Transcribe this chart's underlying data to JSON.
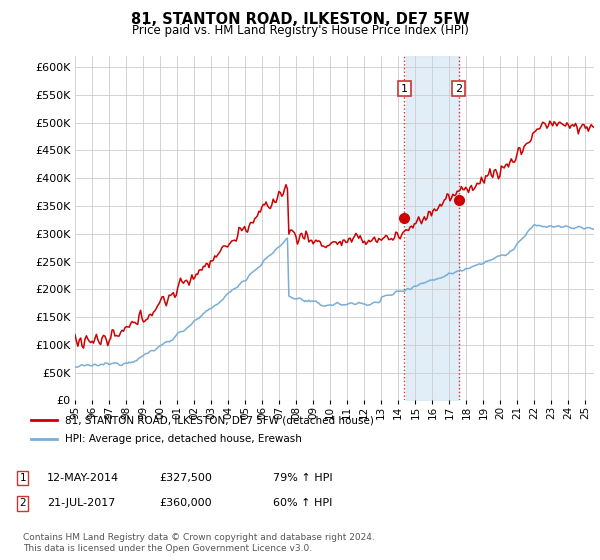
{
  "title": "81, STANTON ROAD, ILKESTON, DE7 5FW",
  "subtitle": "Price paid vs. HM Land Registry's House Price Index (HPI)",
  "legend_line1": "81, STANTON ROAD, ILKESTON, DE7 5FW (detached house)",
  "legend_line2": "HPI: Average price, detached house, Erewash",
  "sale1_date": "12-MAY-2014",
  "sale1_price": "£327,500",
  "sale1_hpi": "79% ↑ HPI",
  "sale1_price_val": 327500,
  "sale1_year": 2014.36,
  "sale2_date": "21-JUL-2017",
  "sale2_price": "£360,000",
  "sale2_hpi": "60% ↑ HPI",
  "sale2_price_val": 360000,
  "sale2_year": 2017.55,
  "footer": "Contains HM Land Registry data © Crown copyright and database right 2024.\nThis data is licensed under the Open Government Licence v3.0.",
  "hpi_color": "#7aaed6",
  "price_color": "#cc0000",
  "shade_color": "#d6e8f5",
  "vline_color": "#cc3333",
  "ylim": [
    0,
    620000
  ],
  "yticks": [
    0,
    50000,
    100000,
    150000,
    200000,
    250000,
    300000,
    350000,
    400000,
    450000,
    500000,
    550000,
    600000
  ],
  "xlim_start": 1995,
  "xlim_end": 2025.5,
  "bg_color": "#ffffff",
  "grid_color": "#cccccc"
}
